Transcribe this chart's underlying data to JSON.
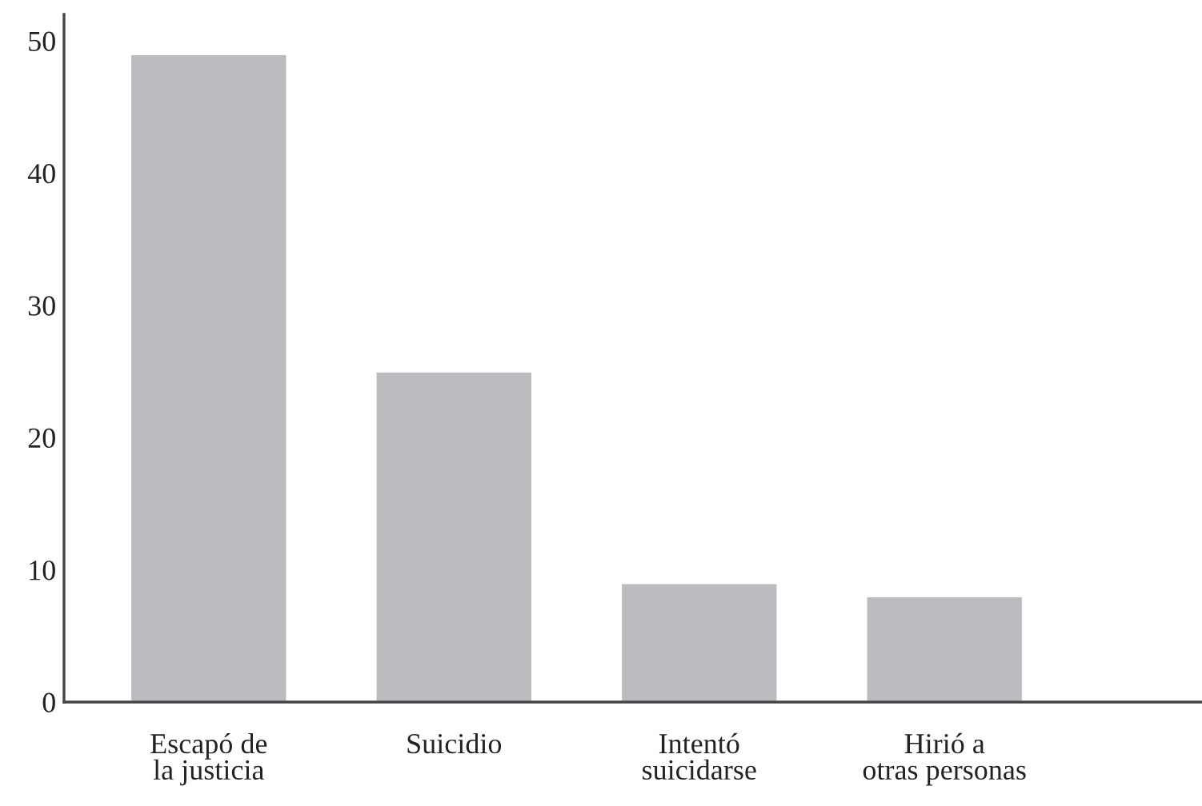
{
  "chart_data": {
    "type": "bar",
    "categories": [
      "Escapó de\nla justicia",
      "Suicidio",
      "Intentó\nsuicidarse",
      "Hirió a\notras personas"
    ],
    "values": [
      49,
      25,
      9,
      8
    ],
    "color": "#bbbcbf",
    "ylim": [
      0,
      52
    ],
    "yticks": [
      0,
      10,
      20,
      30,
      40,
      50
    ],
    "grid": false
  }
}
